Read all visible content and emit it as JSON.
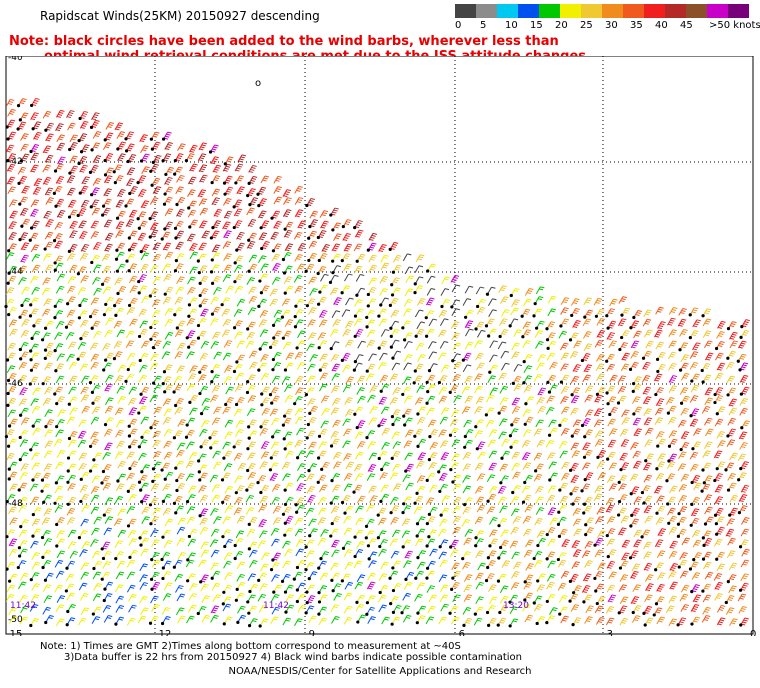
{
  "title": "Rapidscat Winds(25KM) 20150927 descending",
  "legend": {
    "colors": [
      "#444444",
      "#8c8c8c",
      "#00c8f0",
      "#0050f0",
      "#00c800",
      "#f0f000",
      "#f0c832",
      "#f08c1e",
      "#f05a1e",
      "#f01e1e",
      "#b42828",
      "#8c5028",
      "#c800c8",
      "#780078"
    ],
    "labels": [
      "0",
      "5",
      "10",
      "15",
      "20",
      "25",
      "30",
      "35",
      "40",
      "45",
      ">50 knots"
    ]
  },
  "notes": {
    "line1": "Note: black circles have been added to the wind barbs, wherever less than",
    "line2": "optimal wind retrieval conditions are met due to the ISS attitude changes."
  },
  "map": {
    "lat_labels": [
      "-40",
      "-42",
      "-44",
      "-46",
      "-48",
      "-50"
    ],
    "lon_labels": [
      "-15",
      "-12",
      "-9",
      "-6",
      "-3",
      "0"
    ],
    "time_labels": [
      "11:42",
      "11:42",
      "13:20",
      "13:20"
    ],
    "small_mark": "o"
  },
  "footer": {
    "line1": "Note: 1) Times are GMT 2)Times along bottom correspond to measurement at ~40S",
    "line2": "3)Data buffer is 22 hrs from 20150927 4) Black wind barbs indicate possible contamination",
    "credit": "NOAA/NESDIS/Center for Satellite Applications and Research"
  }
}
